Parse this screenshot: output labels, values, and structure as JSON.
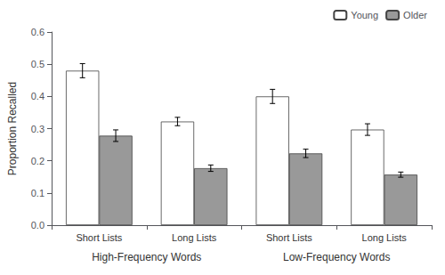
{
  "chart_data": {
    "type": "bar",
    "y_label": "Proportion Recalled",
    "categories": [
      "Short Lists",
      "Long Lists",
      "Short Lists",
      "Long Lists"
    ],
    "annotations": [
      "High-Frequency Words",
      "Low-Frequency Words"
    ],
    "series": [
      {
        "name": "Young",
        "color": "#ffffff",
        "values": [
          0.48,
          0.322,
          0.4,
          0.297
        ],
        "errors": [
          0.022,
          0.013,
          0.022,
          0.018
        ]
      },
      {
        "name": "Older",
        "color": "#999999",
        "values": [
          0.278,
          0.177,
          0.223,
          0.157
        ],
        "errors": [
          0.018,
          0.01,
          0.013,
          0.008
        ]
      }
    ],
    "ylim": [
      0.0,
      0.6
    ],
    "yticks": [
      {
        "value": 0,
        "label": "0.0"
      },
      0.1,
      0.2,
      0.3,
      0.4,
      0.5,
      0.6
    ],
    "grid": false,
    "legend": "upper right"
  }
}
